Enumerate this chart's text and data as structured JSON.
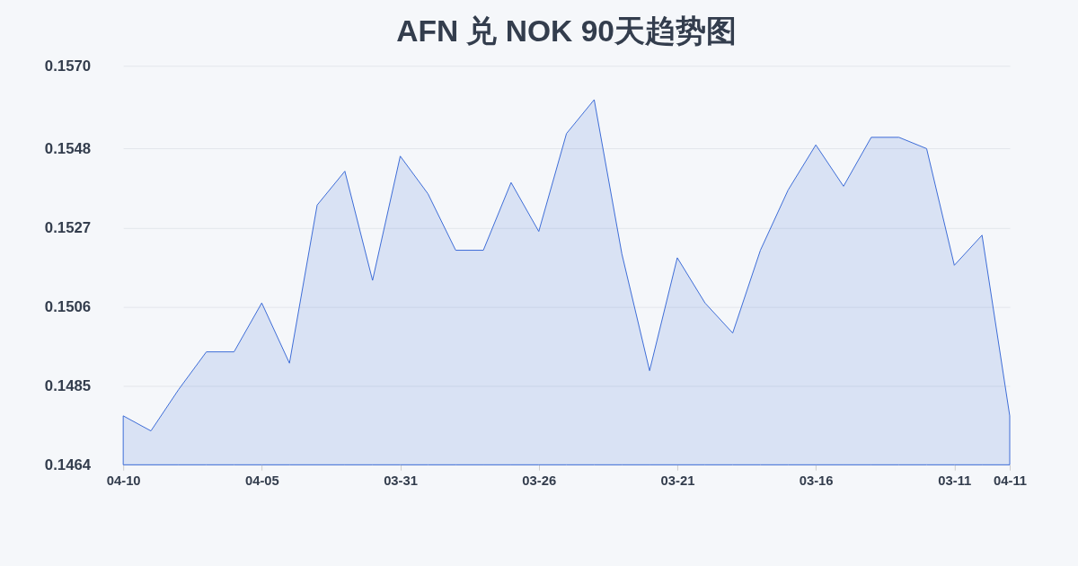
{
  "chart_data": {
    "type": "area",
    "title": "AFN 兑 NOK 90天趋势图",
    "categories": [
      "04-10",
      null,
      null,
      null,
      null,
      "04-05",
      null,
      null,
      null,
      null,
      "03-31",
      null,
      null,
      null,
      null,
      "03-26",
      null,
      null,
      null,
      null,
      "03-21",
      null,
      null,
      null,
      null,
      "03-16",
      null,
      null,
      null,
      null,
      "03-11",
      null,
      "04-11"
    ],
    "series": [
      {
        "color": "#3b6bd6",
        "values": [
          0.1477,
          0.1473,
          0.1484,
          0.1494,
          0.1494,
          0.1507,
          0.1491,
          0.1533,
          0.1542,
          0.1513,
          0.1546,
          0.1536,
          0.1521,
          0.1521,
          0.1539,
          0.1526,
          0.1552,
          0.1561,
          0.152,
          0.1489,
          0.1519,
          0.1507,
          0.1499,
          0.1521,
          0.1537,
          0.1549,
          0.1538,
          0.1551,
          0.1551,
          0.1548,
          0.1517,
          0.1525,
          0.1477
        ]
      }
    ],
    "ylim": [
      0.1464,
      0.157
    ],
    "yticks": [
      0.1464,
      0.1485,
      0.1506,
      0.1527,
      0.1548,
      {
        "value": 0.157,
        "label": "0.1570"
      }
    ],
    "grid": "y",
    "legend": false
  }
}
